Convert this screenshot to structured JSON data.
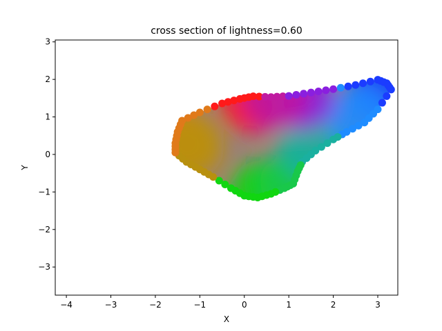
{
  "chart_data": {
    "type": "scatter",
    "title": "cross section of lightness=0.60",
    "xlabel": "X",
    "ylabel": "Y",
    "xlim": [
      -4.25,
      3.45
    ],
    "ylim": [
      -3.75,
      3.05
    ],
    "xticks": [
      -4,
      -3,
      -2,
      -1,
      0,
      1,
      2,
      3
    ],
    "yticks": [
      -3,
      -2,
      -1,
      0,
      1,
      2,
      3
    ],
    "grid": false,
    "legend": "none",
    "series": [
      {
        "kind": "filled-gamut-cross-section",
        "boundary": [
          {
            "x": -1.4,
            "y": 0.9
          },
          {
            "x": -1.0,
            "y": 1.12
          },
          {
            "x": -0.5,
            "y": 1.36
          },
          {
            "x": -0.1,
            "y": 1.48
          },
          {
            "x": 0.2,
            "y": 1.55
          },
          {
            "x": 0.6,
            "y": 1.53
          },
          {
            "x": 1.0,
            "y": 1.56
          },
          {
            "x": 1.5,
            "y": 1.65
          },
          {
            "x": 2.0,
            "y": 1.74
          },
          {
            "x": 2.5,
            "y": 1.85
          },
          {
            "x": 3.0,
            "y": 1.99
          },
          {
            "x": 3.2,
            "y": 1.9
          },
          {
            "x": 3.3,
            "y": 1.73
          },
          {
            "x": 3.0,
            "y": 1.2
          },
          {
            "x": 2.7,
            "y": 0.85
          },
          {
            "x": 2.3,
            "y": 0.6
          },
          {
            "x": 2.0,
            "y": 0.4
          },
          {
            "x": 1.6,
            "y": 0.1
          },
          {
            "x": 1.3,
            "y": -0.2
          },
          {
            "x": 1.2,
            "y": -0.45
          },
          {
            "x": 1.1,
            "y": -0.78
          },
          {
            "x": 0.9,
            "y": -0.9
          },
          {
            "x": 0.6,
            "y": -1.05
          },
          {
            "x": 0.3,
            "y": -1.15
          },
          {
            "x": 0.0,
            "y": -1.1
          },
          {
            "x": -0.3,
            "y": -0.9
          },
          {
            "x": -0.7,
            "y": -0.6
          },
          {
            "x": -1.0,
            "y": -0.4
          },
          {
            "x": -1.3,
            "y": -0.2
          },
          {
            "x": -1.55,
            "y": 0.05
          },
          {
            "x": -1.55,
            "y": 0.3
          },
          {
            "x": -1.5,
            "y": 0.6
          }
        ],
        "hue_anchors": [
          {
            "x": 0.2,
            "y": 1.45,
            "color": "#ff1a1a"
          },
          {
            "x": -1.4,
            "y": 0.4,
            "color": "#e07a1a"
          },
          {
            "x": -1.2,
            "y": 0.2,
            "color": "#b8900f"
          },
          {
            "x": 0.4,
            "y": -1.05,
            "color": "#11d611"
          },
          {
            "x": 1.1,
            "y": -0.7,
            "color": "#19c84a"
          },
          {
            "x": 1.5,
            "y": 0.2,
            "color": "#1ab0a0"
          },
          {
            "x": 3.1,
            "y": 1.75,
            "color": "#1b3cff"
          },
          {
            "x": 2.6,
            "y": 1.0,
            "color": "#1f8cff"
          },
          {
            "x": 1.3,
            "y": 1.5,
            "color": "#8a1fdf"
          },
          {
            "x": 0.7,
            "y": 1.5,
            "color": "#c01aa0"
          }
        ]
      }
    ]
  }
}
